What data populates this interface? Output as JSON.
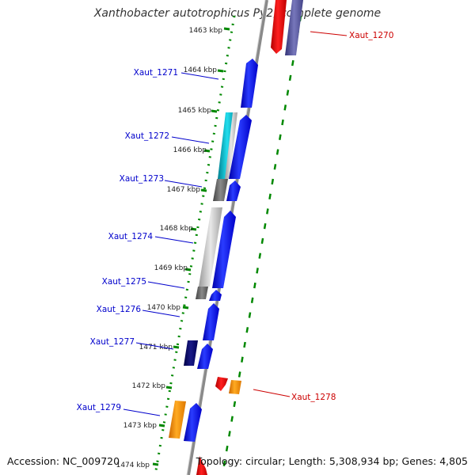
{
  "title": "Xanthobacter autotrophicus Py2, complete genome",
  "accession": "Accession: NC_009720",
  "summary": "Topology: circular; Length: 5,308,934 bp; Genes: 4,805",
  "ticks": [
    {
      "label": "1463 kbp"
    },
    {
      "label": "1464 kbp"
    },
    {
      "label": "1465 kbp"
    },
    {
      "label": "1466 kbp"
    },
    {
      "label": "1467 kbp"
    },
    {
      "label": "1468 kbp"
    },
    {
      "label": "1469 kbp"
    },
    {
      "label": "1470 kbp"
    },
    {
      "label": "1471 kbp"
    },
    {
      "label": "1472 kbp"
    },
    {
      "label": "1473 kbp"
    },
    {
      "label": "1474 kbp"
    }
  ],
  "genes": [
    {
      "label": "Xaut_1270",
      "side": "right"
    },
    {
      "label": "Xaut_1271",
      "side": "left"
    },
    {
      "label": "Xaut_1272",
      "side": "left"
    },
    {
      "label": "Xaut_1273",
      "side": "left"
    },
    {
      "label": "Xaut_1274",
      "side": "left"
    },
    {
      "label": "Xaut_1275",
      "side": "left"
    },
    {
      "label": "Xaut_1276",
      "side": "left"
    },
    {
      "label": "Xaut_1277",
      "side": "left"
    },
    {
      "label": "Xaut_1278",
      "side": "right"
    },
    {
      "label": "Xaut_1279",
      "side": "left"
    }
  ],
  "colors": {
    "forward_cds": "#0000ee",
    "reverse_cds": "#ee0000",
    "orange_feature": "#ff9900",
    "label_left": "#0000cc",
    "label_right": "#cc0000",
    "tick_green": "#008800",
    "backbone": "#8a8a8a"
  }
}
